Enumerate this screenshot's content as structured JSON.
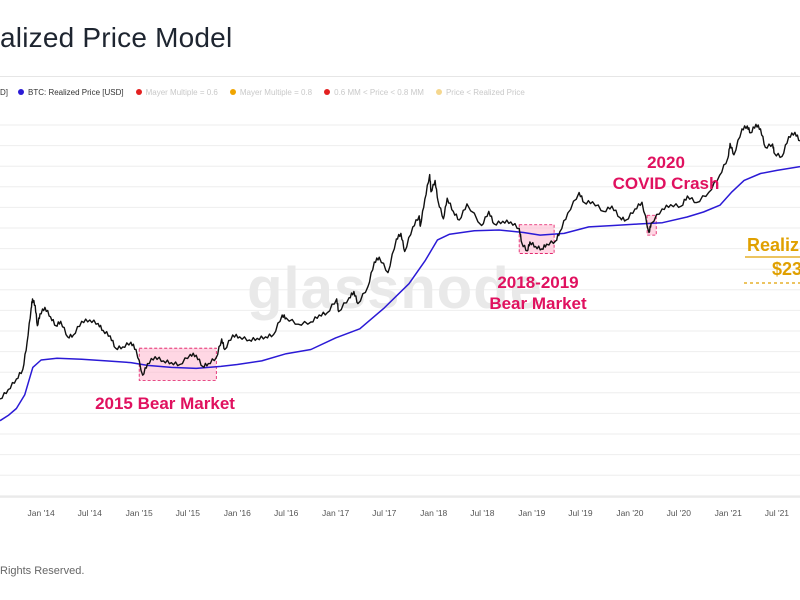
{
  "header": {
    "title": "alized Price Model"
  },
  "legend": {
    "items": [
      {
        "label": "D]",
        "color": "#111111",
        "muted": false,
        "partial": true
      },
      {
        "label": "BTC: Realized Price [USD]",
        "color": "#2b1ad6",
        "muted": false
      },
      {
        "label": "Mayer Multiple = 0.6",
        "color": "#e32020",
        "muted": true
      },
      {
        "label": "Mayer Multiple = 0.8",
        "color": "#f0a500",
        "muted": true
      },
      {
        "label": "0.6 MM < Price < 0.8 MM",
        "color": "#e32020",
        "muted": true
      },
      {
        "label": "Price < Realized Price",
        "color": "#f5d78e",
        "muted": true
      }
    ]
  },
  "watermark": "glassnode",
  "footer": {
    "text": "Rights Reserved."
  },
  "chart_data": {
    "type": "line",
    "scale": "log",
    "ylim": [
      10,
      100000
    ],
    "xlim": [
      "2013-08-01",
      "2021-09-25"
    ],
    "grid": true,
    "x_tick_labels": [
      "Jan '14",
      "Jul '14",
      "Jan '15",
      "Jul '15",
      "Jan '16",
      "Jul '16",
      "Jan '17",
      "Jul '17",
      "Jan '18",
      "Jul '18",
      "Jan '19",
      "Jul '19",
      "Jan '20",
      "Jul '20",
      "Jan '21",
      "Jul '21"
    ],
    "x_tick_dates": [
      "2014-01-01",
      "2014-07-01",
      "2015-01-01",
      "2015-07-01",
      "2016-01-01",
      "2016-07-01",
      "2017-01-01",
      "2017-07-01",
      "2018-01-01",
      "2018-07-01",
      "2019-01-01",
      "2019-07-01",
      "2020-01-01",
      "2020-07-01",
      "2021-01-01",
      "2021-07-01"
    ],
    "series": [
      {
        "name": "BTC: Realized Price [USD]",
        "color": "#2b1ad6",
        "points": [
          [
            "2013-08-01",
            60
          ],
          [
            "2013-09-01",
            68
          ],
          [
            "2013-10-01",
            80
          ],
          [
            "2013-11-01",
            110
          ],
          [
            "2013-12-01",
            210
          ],
          [
            "2014-01-01",
            250
          ],
          [
            "2014-03-01",
            260
          ],
          [
            "2014-06-01",
            255
          ],
          [
            "2014-09-01",
            245
          ],
          [
            "2014-12-01",
            235
          ],
          [
            "2015-02-01",
            220
          ],
          [
            "2015-05-01",
            210
          ],
          [
            "2015-08-01",
            205
          ],
          [
            "2015-11-01",
            215
          ],
          [
            "2016-01-01",
            225
          ],
          [
            "2016-04-01",
            245
          ],
          [
            "2016-07-01",
            290
          ],
          [
            "2016-10-01",
            320
          ],
          [
            "2017-01-01",
            420
          ],
          [
            "2017-04-01",
            520
          ],
          [
            "2017-07-01",
            850
          ],
          [
            "2017-10-01",
            1500
          ],
          [
            "2017-12-01",
            2600
          ],
          [
            "2018-01-15",
            4200
          ],
          [
            "2018-03-01",
            4800
          ],
          [
            "2018-06-01",
            5200
          ],
          [
            "2018-09-01",
            5300
          ],
          [
            "2018-12-01",
            5000
          ],
          [
            "2019-02-01",
            4700
          ],
          [
            "2019-05-01",
            4900
          ],
          [
            "2019-08-01",
            5700
          ],
          [
            "2019-11-01",
            5900
          ],
          [
            "2020-02-01",
            6100
          ],
          [
            "2020-05-01",
            6300
          ],
          [
            "2020-08-01",
            7200
          ],
          [
            "2020-10-01",
            8100
          ],
          [
            "2020-12-01",
            9500
          ],
          [
            "2021-01-15",
            13000
          ],
          [
            "2021-03-01",
            17000
          ],
          [
            "2021-05-01",
            20000
          ],
          [
            "2021-07-01",
            21500
          ],
          [
            "2021-09-25",
            23500
          ]
        ]
      },
      {
        "name": "BTC Price [USD]",
        "color": "#111111",
        "points": [
          [
            "2013-08-01",
            100
          ],
          [
            "2013-09-01",
            125
          ],
          [
            "2013-10-01",
            160
          ],
          [
            "2013-10-25",
            200
          ],
          [
            "2013-11-10",
            380
          ],
          [
            "2013-11-25",
            850
          ],
          [
            "2013-11-30",
            1050
          ],
          [
            "2013-12-10",
            900
          ],
          [
            "2013-12-18",
            560
          ],
          [
            "2013-12-28",
            740
          ],
          [
            "2014-01-15",
            860
          ],
          [
            "2014-02-05",
            690
          ],
          [
            "2014-02-25",
            560
          ],
          [
            "2014-03-15",
            620
          ],
          [
            "2014-04-10",
            430
          ],
          [
            "2014-05-01",
            450
          ],
          [
            "2014-06-01",
            620
          ],
          [
            "2014-07-01",
            640
          ],
          [
            "2014-08-01",
            590
          ],
          [
            "2014-08-20",
            500
          ],
          [
            "2014-09-15",
            440
          ],
          [
            "2014-10-05",
            330
          ],
          [
            "2014-11-01",
            340
          ],
          [
            "2014-12-01",
            380
          ],
          [
            "2014-12-20",
            320
          ],
          [
            "2015-01-14",
            175
          ],
          [
            "2015-02-01",
            230
          ],
          [
            "2015-03-01",
            270
          ],
          [
            "2015-04-01",
            245
          ],
          [
            "2015-05-01",
            235
          ],
          [
            "2015-06-01",
            225
          ],
          [
            "2015-07-10",
            285
          ],
          [
            "2015-08-01",
            280
          ],
          [
            "2015-08-25",
            215
          ],
          [
            "2015-09-15",
            230
          ],
          [
            "2015-10-15",
            265
          ],
          [
            "2015-11-04",
            410
          ],
          [
            "2015-11-15",
            320
          ],
          [
            "2015-12-15",
            450
          ],
          [
            "2016-01-10",
            430
          ],
          [
            "2016-02-15",
            400
          ],
          [
            "2016-03-15",
            415
          ],
          [
            "2016-04-15",
            430
          ],
          [
            "2016-05-15",
            455
          ],
          [
            "2016-06-16",
            720
          ],
          [
            "2016-07-01",
            670
          ],
          [
            "2016-08-15",
            580
          ],
          [
            "2016-10-01",
            610
          ],
          [
            "2016-11-01",
            720
          ],
          [
            "2016-12-01",
            760
          ],
          [
            "2017-01-05",
            1050
          ],
          [
            "2017-01-12",
            780
          ],
          [
            "2017-02-20",
            1080
          ],
          [
            "2017-03-10",
            1250
          ],
          [
            "2017-03-25",
            940
          ],
          [
            "2017-05-01",
            1400
          ],
          [
            "2017-05-25",
            2500
          ],
          [
            "2017-06-12",
            2800
          ],
          [
            "2017-07-15",
            1950
          ],
          [
            "2017-08-15",
            4300
          ],
          [
            "2017-09-01",
            4900
          ],
          [
            "2017-09-15",
            3200
          ],
          [
            "2017-10-15",
            5700
          ],
          [
            "2017-11-08",
            7400
          ],
          [
            "2017-11-12",
            5800
          ],
          [
            "2017-11-29",
            11000
          ],
          [
            "2017-12-17",
            19500
          ],
          [
            "2017-12-22",
            13000
          ],
          [
            "2018-01-06",
            17000
          ],
          [
            "2018-01-17",
            10500
          ],
          [
            "2018-02-06",
            6900
          ],
          [
            "2018-02-20",
            11200
          ],
          [
            "2018-03-15",
            8200
          ],
          [
            "2018-04-06",
            6700
          ],
          [
            "2018-05-05",
            9800
          ],
          [
            "2018-06-28",
            5900
          ],
          [
            "2018-07-25",
            8200
          ],
          [
            "2018-08-14",
            6100
          ],
          [
            "2018-09-15",
            6500
          ],
          [
            "2018-10-15",
            6400
          ],
          [
            "2018-11-15",
            5500
          ],
          [
            "2018-11-25",
            3900
          ],
          [
            "2018-12-15",
            3250
          ],
          [
            "2018-12-25",
            4000
          ],
          [
            "2019-01-15",
            3600
          ],
          [
            "2019-02-07",
            3400
          ],
          [
            "2019-02-25",
            3800
          ],
          [
            "2019-03-31",
            4100
          ],
          [
            "2019-04-15",
            5100
          ],
          [
            "2019-05-15",
            7900
          ],
          [
            "2019-06-26",
            12800
          ],
          [
            "2019-07-15",
            10100
          ],
          [
            "2019-08-15",
            10300
          ],
          [
            "2019-09-26",
            8200
          ],
          [
            "2019-10-26",
            9300
          ],
          [
            "2019-11-25",
            7100
          ],
          [
            "2019-12-18",
            6700
          ],
          [
            "2020-01-20",
            8700
          ],
          [
            "2020-02-15",
            10200
          ],
          [
            "2020-03-12",
            5000
          ],
          [
            "2020-03-20",
            6200
          ],
          [
            "2020-04-30",
            8700
          ],
          [
            "2020-06-01",
            9600
          ],
          [
            "2020-07-10",
            9300
          ],
          [
            "2020-08-02",
            11800
          ],
          [
            "2020-09-05",
            10100
          ],
          [
            "2020-10-21",
            12900
          ],
          [
            "2020-11-30",
            19200
          ],
          [
            "2020-12-31",
            29000
          ],
          [
            "2021-01-08",
            40500
          ],
          [
            "2021-01-22",
            31000
          ],
          [
            "2021-02-21",
            57000
          ],
          [
            "2021-03-13",
            61000
          ],
          [
            "2021-03-25",
            52000
          ],
          [
            "2021-04-14",
            63500
          ],
          [
            "2021-05-01",
            57000
          ],
          [
            "2021-05-19",
            37000
          ],
          [
            "2021-06-15",
            40000
          ],
          [
            "2021-06-22",
            32000
          ],
          [
            "2021-07-20",
            29800
          ],
          [
            "2021-08-14",
            47500
          ],
          [
            "2021-09-06",
            52500
          ],
          [
            "2021-09-25",
            43000
          ]
        ]
      }
    ],
    "annotations": [
      {
        "text": "2015 Bear Market",
        "color": "#e0115f",
        "x0": "2015-01-01",
        "x1": "2015-10-15",
        "y0": 155,
        "y1": 330
      },
      {
        "text": "2018-2019 Bear Market",
        "lines": [
          "2018-2019",
          "Bear Market"
        ],
        "color": "#e0115f",
        "x0": "2018-11-15",
        "x1": "2019-03-25",
        "y0": 3050,
        "y1": 6000
      },
      {
        "text": "2020 COVID Crash",
        "lines": [
          "2020",
          "COVID Crash"
        ],
        "color": "#e0115f",
        "x0": "2020-03-05",
        "x1": "2020-04-08",
        "y0": 4700,
        "y1": 7500
      }
    ],
    "value_callout": {
      "lines": [
        "Realiz",
        "$23"
      ],
      "color": "#e0a000"
    }
  }
}
